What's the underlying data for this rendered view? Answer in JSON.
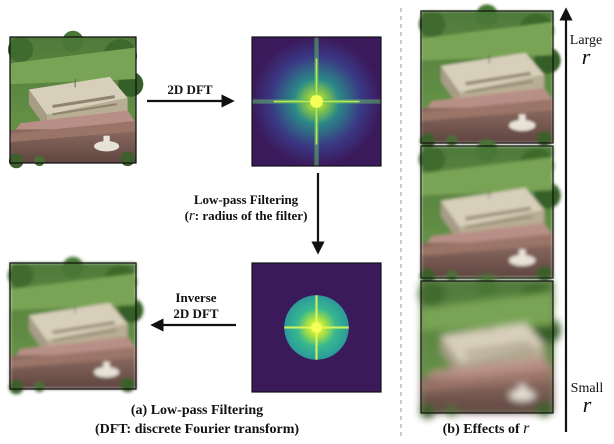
{
  "panel_a": {
    "arrow_dft_label": "2D DFT",
    "filter_label_line1": "Low-pass Filtering",
    "filter_label_line2_symbol": "r",
    "filter_label_line2_text": ": radius of the filter)",
    "inverse_label_line1": "Inverse",
    "inverse_label_line2": "2D DFT",
    "caption_line1": "(a) Low-pass Filtering",
    "caption_line2": "(DFT: discrete Fourier transform)"
  },
  "panel_b": {
    "caption_prefix": "(b) Effects of",
    "caption_symbol": "r",
    "axis_large_label": "Large",
    "axis_large_symbol": "r",
    "axis_small_label": "Small",
    "axis_small_symbol": "r"
  },
  "colors": {
    "spectrum_background": "#3b1a5c",
    "spectrum_glow": "#9fde3a",
    "spectrum_center": "#f5ff5a",
    "circle_fill": "#2bb59a",
    "lawn": "#5f8f42",
    "building": "#cfc6b2",
    "crowd": "#7a5b55"
  }
}
